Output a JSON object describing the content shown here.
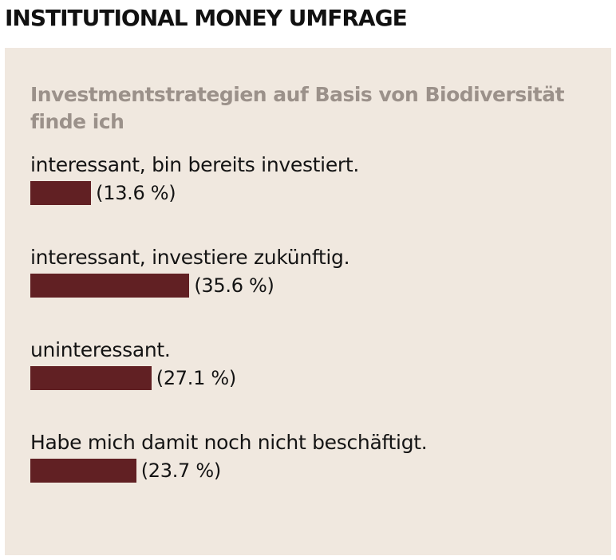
{
  "header": {
    "title": "INSTITUTIONAL MONEY UMFRAGE"
  },
  "poll": {
    "question": "Investmentstrategien auf Basis von Biodiversität finde ich",
    "bar_color": "#612023",
    "panel_color": "#f0e8df",
    "options": [
      {
        "label": "interessant, bin bereits investiert.",
        "percent_text": "(13.6 %)"
      },
      {
        "label": "interessant, investiere zukünftig.",
        "percent_text": "(35.6 %)"
      },
      {
        "label": "uninteressant.",
        "percent_text": "(27.1 %)"
      },
      {
        "label": "Habe mich damit noch nicht beschäftigt.",
        "percent_text": "(23.7 %)"
      }
    ]
  },
  "chart_data": {
    "type": "bar",
    "title": "Investmentstrategien auf Basis von Biodiversität finde ich",
    "categories": [
      "interessant, bin bereits investiert.",
      "interessant, investiere zukünftig.",
      "uninteressant.",
      "Habe mich damit noch nicht beschäftigt."
    ],
    "values": [
      13.6,
      35.6,
      27.1,
      23.7
    ],
    "unit": "%",
    "orientation": "horizontal",
    "grid": false
  }
}
